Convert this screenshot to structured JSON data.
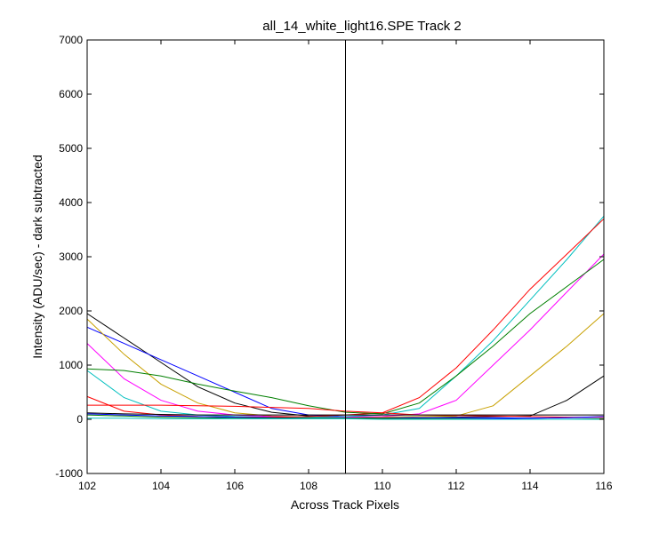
{
  "chart_data": {
    "type": "line",
    "title": "all_14_white_light16.SPE   Track 2",
    "xlabel": "Across Track Pixels",
    "ylabel": "Intensity (ADU/sec) - dark subtracted",
    "xlim": [
      102,
      116
    ],
    "ylim": [
      -1000,
      7000
    ],
    "xticks": [
      102,
      104,
      106,
      108,
      110,
      112,
      114,
      116
    ],
    "yticks": [
      -1000,
      0,
      1000,
      2000,
      3000,
      4000,
      5000,
      6000,
      7000
    ],
    "xtick_labels": [
      "102",
      "104",
      "106",
      "108",
      "110",
      "112",
      "114",
      "116"
    ],
    "ytick_labels": [
      "-1000",
      "0",
      "1000",
      "2000",
      "3000",
      "4000",
      "5000",
      "6000",
      "7000"
    ],
    "grid": false,
    "vertical_marker_x": 109,
    "x": [
      102,
      103,
      104,
      105,
      106,
      107,
      108,
      109,
      110,
      111,
      112,
      113,
      114,
      115,
      116
    ],
    "series": [
      {
        "color": "#000000",
        "values": [
          1950,
          1500,
          1050,
          600,
          300,
          130,
          60,
          40,
          30,
          30,
          40,
          50,
          60,
          350,
          800
        ]
      },
      {
        "color": "#0000ff",
        "values": [
          1700,
          1400,
          1100,
          800,
          500,
          200,
          80,
          50,
          40,
          30,
          30,
          30,
          20,
          30,
          40
        ]
      },
      {
        "color": "#c8a000",
        "values": [
          1850,
          1200,
          650,
          300,
          120,
          60,
          40,
          40,
          40,
          50,
          60,
          250,
          800,
          1350,
          1950
        ]
      },
      {
        "color": "#ff00ff",
        "values": [
          1400,
          750,
          350,
          150,
          80,
          50,
          40,
          40,
          50,
          100,
          350,
          1000,
          1650,
          2350,
          3050
        ]
      },
      {
        "color": "#00bfbf",
        "values": [
          900,
          400,
          150,
          80,
          50,
          40,
          40,
          50,
          80,
          200,
          800,
          1450,
          2200,
          2950,
          3750
        ]
      },
      {
        "color": "#ff0000",
        "values": [
          420,
          150,
          80,
          50,
          40,
          40,
          50,
          80,
          120,
          400,
          950,
          1650,
          2400,
          3050,
          3700
        ]
      },
      {
        "color": "#007f00",
        "values": [
          930,
          900,
          800,
          650,
          520,
          400,
          250,
          130,
          100,
          300,
          800,
          1350,
          1950,
          2450,
          2950
        ]
      },
      {
        "color": "#ff0000",
        "values": [
          260,
          260,
          260,
          250,
          240,
          220,
          200,
          150,
          120,
          80,
          70,
          60,
          50,
          40,
          40
        ]
      },
      {
        "color": "#0000ff",
        "values": [
          100,
          80,
          60,
          50,
          40,
          30,
          20,
          20,
          10,
          10,
          10,
          10,
          20,
          30,
          50
        ]
      },
      {
        "color": "#007f00",
        "values": [
          80,
          60,
          40,
          30,
          20,
          20,
          20,
          20,
          10,
          10,
          10,
          0,
          0,
          0,
          10
        ]
      },
      {
        "color": "#000000",
        "values": [
          120,
          100,
          90,
          80,
          80,
          80,
          80,
          80,
          80,
          80,
          80,
          80,
          80,
          80,
          80
        ]
      },
      {
        "color": "#00bfbf",
        "values": [
          20,
          20,
          10,
          10,
          10,
          10,
          10,
          10,
          0,
          0,
          0,
          0,
          0,
          0,
          0
        ]
      }
    ]
  }
}
